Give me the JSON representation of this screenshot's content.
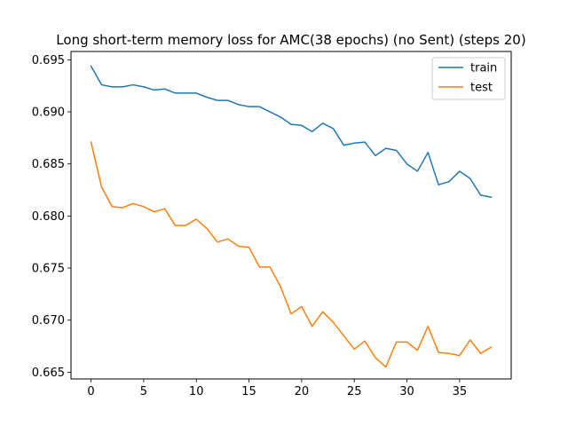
{
  "chart_data": {
    "type": "line",
    "title": "Long short-term memory loss for AMC(38 epochs) (no Sent) (steps 20)",
    "xlabel": "",
    "ylabel": "",
    "xlim": [
      -1.9,
      39.9
    ],
    "ylim": [
      0.66435,
      0.6958
    ],
    "xticks": [
      0,
      5,
      10,
      15,
      20,
      25,
      30,
      35
    ],
    "yticks": [
      0.665,
      0.67,
      0.675,
      0.68,
      0.685,
      0.69,
      0.695
    ],
    "ytick_labels": [
      "0.665",
      "0.670",
      "0.675",
      "0.680",
      "0.685",
      "0.690",
      "0.695"
    ],
    "grid": false,
    "legend_position": "top-right",
    "x": [
      0,
      1,
      2,
      3,
      4,
      5,
      6,
      7,
      8,
      9,
      10,
      11,
      12,
      13,
      14,
      15,
      16,
      17,
      18,
      19,
      20,
      21,
      22,
      23,
      24,
      25,
      26,
      27,
      28,
      29,
      30,
      31,
      32,
      33,
      34,
      35,
      36,
      37,
      38
    ],
    "series": [
      {
        "name": "train",
        "color": "#1f77b4",
        "values": [
          0.6944,
          0.6926,
          0.6924,
          0.6924,
          0.6926,
          0.6924,
          0.6921,
          0.6922,
          0.6918,
          0.6918,
          0.6918,
          0.6914,
          0.6911,
          0.6911,
          0.6907,
          0.6905,
          0.6905,
          0.69,
          0.6895,
          0.6888,
          0.6887,
          0.6881,
          0.6889,
          0.6884,
          0.6868,
          0.687,
          0.6871,
          0.6858,
          0.6865,
          0.6863,
          0.685,
          0.6843,
          0.6861,
          0.683,
          0.6833,
          0.6843,
          0.6836,
          0.682,
          0.6818
        ]
      },
      {
        "name": "test",
        "color": "#ff7f0e",
        "values": [
          0.6871,
          0.6828,
          0.6809,
          0.6808,
          0.6812,
          0.6809,
          0.6804,
          0.6807,
          0.6791,
          0.6791,
          0.6797,
          0.6788,
          0.6775,
          0.6778,
          0.6771,
          0.677,
          0.6751,
          0.6751,
          0.6732,
          0.6706,
          0.6713,
          0.6694,
          0.6708,
          0.6698,
          0.6685,
          0.6672,
          0.668,
          0.6664,
          0.6655,
          0.6679,
          0.6679,
          0.6671,
          0.6694,
          0.6669,
          0.6668,
          0.6666,
          0.6681,
          0.6668,
          0.6674
        ]
      }
    ]
  }
}
